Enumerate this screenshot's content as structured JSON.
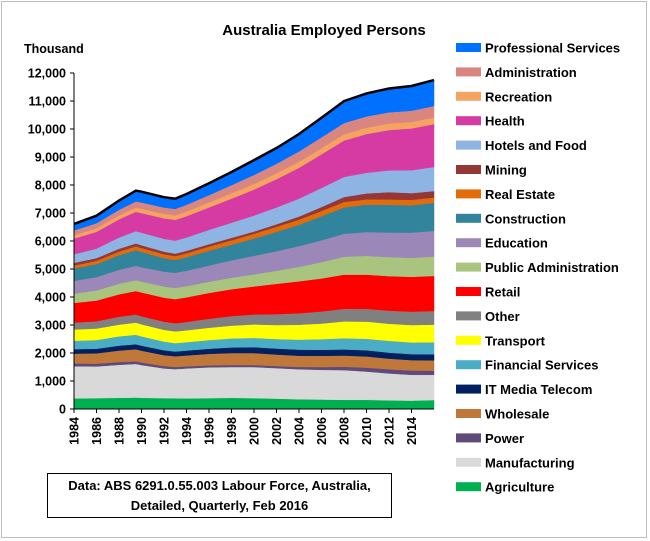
{
  "chart_data": {
    "type": "area",
    "stacked": true,
    "title": "Australia Employed Persons",
    "ylabel": "Thousand",
    "xlabel": "",
    "ylim": [
      0,
      12000
    ],
    "yticks": [
      "0",
      "1,000",
      "2,000",
      "3,000",
      "4,000",
      "5,000",
      "6,000",
      "7,000",
      "8,000",
      "9,000",
      "10,000",
      "11,000",
      "12,000"
    ],
    "xlim": [
      1984,
      2016
    ],
    "xticks": [
      "1984",
      "1986",
      "1988",
      "1990",
      "1992",
      "1994",
      "1996",
      "1998",
      "2000",
      "2002",
      "2004",
      "2006",
      "2008",
      "2010",
      "2012",
      "2014"
    ],
    "x": [
      1984,
      1986,
      1988,
      1989.5,
      1990,
      1992,
      1993,
      1994,
      1996,
      1998,
      2000,
      2002,
      2004,
      2006,
      2008,
      2010,
      2012,
      2014,
      2016
    ],
    "series": [
      {
        "name": "Agriculture",
        "color": "#00b050",
        "values": [
          380,
          390,
          400,
          410,
          400,
          390,
          385,
          380,
          390,
          400,
          390,
          370,
          350,
          340,
          330,
          330,
          310,
          300,
          320
        ]
      },
      {
        "name": "Manufacturing",
        "color": "#d9d9d9",
        "values": [
          1150,
          1130,
          1180,
          1200,
          1170,
          1060,
          1040,
          1070,
          1100,
          1100,
          1110,
          1090,
          1070,
          1060,
          1060,
          1010,
          960,
          920,
          900
        ]
      },
      {
        "name": "Power",
        "color": "#604a7b",
        "values": [
          100,
          100,
          100,
          95,
          95,
          85,
          80,
          75,
          70,
          70,
          70,
          75,
          85,
          100,
          120,
          140,
          150,
          155,
          150
        ]
      },
      {
        "name": "Wholesale",
        "color": "#c0773a",
        "values": [
          350,
          370,
          410,
          430,
          420,
          390,
          380,
          390,
          410,
          430,
          430,
          410,
          400,
          400,
          400,
          400,
          380,
          370,
          370
        ]
      },
      {
        "name": "IT Media Telecom",
        "color": "#002060",
        "values": [
          160,
          165,
          175,
          180,
          180,
          175,
          170,
          175,
          185,
          200,
          210,
          215,
          215,
          215,
          220,
          220,
          215,
          215,
          215
        ]
      },
      {
        "name": "Financial Services",
        "color": "#4bacc6",
        "values": [
          300,
          310,
          330,
          340,
          330,
          310,
          300,
          300,
          310,
          320,
          330,
          340,
          360,
          380,
          400,
          410,
          420,
          420,
          430
        ]
      },
      {
        "name": "Transport",
        "color": "#ffff00",
        "values": [
          400,
          410,
          420,
          430,
          430,
          420,
          415,
          420,
          440,
          460,
          480,
          500,
          530,
          560,
          600,
          610,
          610,
          620,
          630
        ]
      },
      {
        "name": "Other",
        "color": "#808080",
        "values": [
          250,
          260,
          280,
          290,
          290,
          290,
          295,
          300,
          320,
          340,
          360,
          390,
          410,
          430,
          450,
          460,
          470,
          480,
          490
        ]
      },
      {
        "name": "Retail",
        "color": "#ff0000",
        "values": [
          700,
          740,
          800,
          840,
          850,
          860,
          860,
          880,
          920,
          960,
          1000,
          1080,
          1140,
          1180,
          1220,
          1220,
          1230,
          1240,
          1250
        ]
      },
      {
        "name": "Public Administration",
        "color": "#a9c47f",
        "values": [
          330,
          360,
          380,
          390,
          390,
          400,
          400,
          400,
          400,
          410,
          430,
          470,
          520,
          580,
          640,
          670,
          680,
          680,
          690
        ]
      },
      {
        "name": "Education",
        "color": "#9b87b8",
        "values": [
          460,
          480,
          500,
          510,
          510,
          530,
          540,
          550,
          580,
          620,
          660,
          700,
          740,
          780,
          820,
          850,
          880,
          900,
          920
        ]
      },
      {
        "name": "Construction",
        "color": "#31849b",
        "values": [
          440,
          460,
          520,
          560,
          550,
          480,
          460,
          480,
          530,
          560,
          620,
          690,
          760,
          860,
          940,
          980,
          990,
          980,
          1000
        ]
      },
      {
        "name": "Real Estate",
        "color": "#e26b0a",
        "values": [
          110,
          120,
          130,
          140,
          140,
          140,
          140,
          145,
          150,
          160,
          170,
          180,
          185,
          190,
          195,
          190,
          190,
          190,
          190
        ]
      },
      {
        "name": "Mining",
        "color": "#953735",
        "values": [
          90,
          95,
          100,
          100,
          95,
          90,
          85,
          85,
          85,
          85,
          80,
          90,
          110,
          140,
          175,
          210,
          260,
          240,
          230
        ]
      },
      {
        "name": "Hotels and Food",
        "color": "#8db4e2",
        "values": [
          310,
          340,
          400,
          440,
          450,
          460,
          465,
          480,
          510,
          540,
          570,
          600,
          640,
          680,
          720,
          740,
          780,
          820,
          860
        ]
      },
      {
        "name": "Health",
        "color": "#d63ba4",
        "values": [
          560,
          600,
          650,
          690,
          700,
          730,
          740,
          760,
          800,
          860,
          930,
          1010,
          1100,
          1200,
          1300,
          1380,
          1440,
          1490,
          1530
        ]
      },
      {
        "name": "Recreation",
        "color": "#f4a460",
        "values": [
          120,
          125,
          140,
          150,
          155,
          160,
          160,
          165,
          180,
          190,
          200,
          210,
          215,
          220,
          225,
          230,
          230,
          235,
          240
        ]
      },
      {
        "name": "Administration",
        "color": "#da8680",
        "values": [
          170,
          180,
          200,
          220,
          225,
          225,
          230,
          240,
          260,
          290,
          320,
          340,
          370,
          390,
          400,
          400,
          400,
          400,
          410
        ]
      },
      {
        "name": "Professional Services",
        "color": "#0070ff",
        "values": [
          230,
          270,
          330,
          380,
          380,
          370,
          365,
          385,
          420,
          470,
          530,
          560,
          620,
          700,
          780,
          820,
          850,
          880,
          920
        ]
      }
    ],
    "legend": {
      "position": "right"
    },
    "grid": false
  },
  "note": {
    "line1": "Data: ABS 6291.0.55.003  Labour Force, Australia,",
    "line2": "Detailed, Quarterly, Feb 2016"
  }
}
